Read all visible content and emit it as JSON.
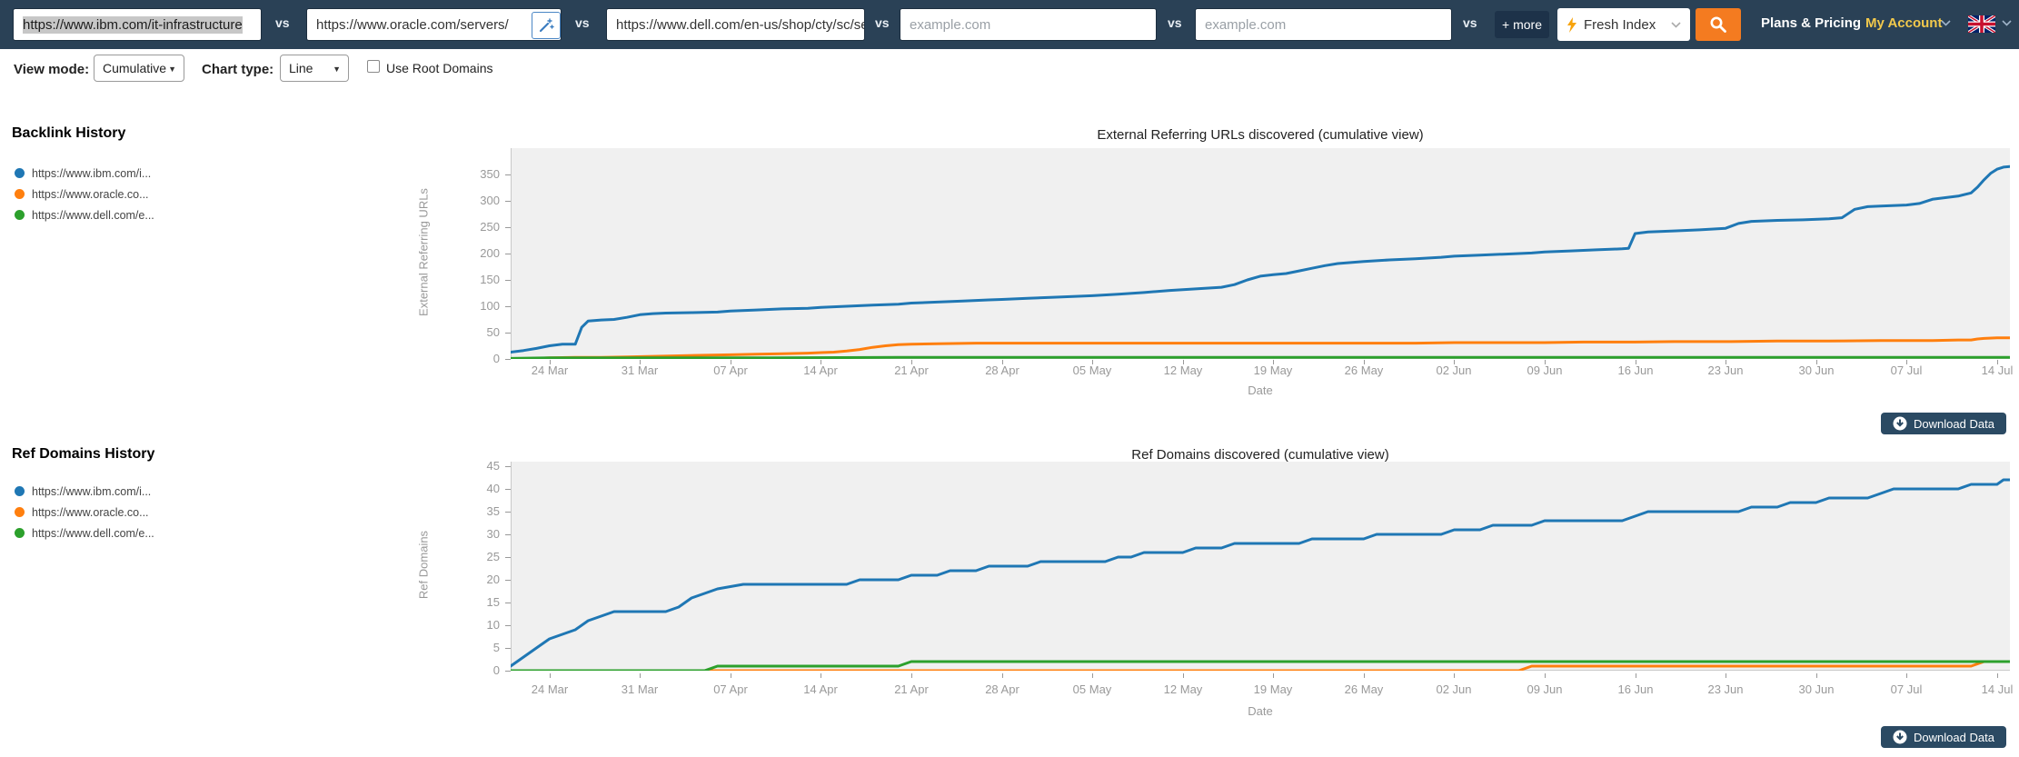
{
  "navbar": {
    "vs": "vs",
    "fields": [
      {
        "value": "https://www.ibm.com/it-infrastructure"
      },
      {
        "value": "https://www.oracle.com/servers/"
      },
      {
        "value": "https://www.dell.com/en-us/shop/cty/sc/se"
      },
      {
        "placeholder": "example.com"
      },
      {
        "placeholder": "example.com"
      }
    ],
    "more": "+ more",
    "index_label": "Fresh Index",
    "plans": "Plans & Pricing",
    "account": "My Account"
  },
  "controls": {
    "view_mode_label": "View mode:",
    "view_mode_value": "Cumulative",
    "chart_type_label": "Chart type:",
    "chart_type_value": "Line",
    "root_domains_label": "Use Root Domains"
  },
  "sections": [
    {
      "heading": "Backlink History",
      "legend": [
        {
          "label": "https://www.ibm.com/i...",
          "color": "#1f77b4"
        },
        {
          "label": "https://www.oracle.co...",
          "color": "#ff7f0e"
        },
        {
          "label": "https://www.dell.com/e...",
          "color": "#2ca02c"
        }
      ]
    },
    {
      "heading": "Ref Domains History",
      "legend": [
        {
          "label": "https://www.ibm.com/i...",
          "color": "#1f77b4"
        },
        {
          "label": "https://www.oracle.co...",
          "color": "#ff7f0e"
        },
        {
          "label": "https://www.dell.com/e...",
          "color": "#2ca02c"
        }
      ]
    }
  ],
  "download_label": "Download Data",
  "colors": {
    "navbar_bg": "#2a4156",
    "accent_orange": "#f47b20",
    "account_gold": "#f2c94c",
    "plot_bg": "#f0f0f0",
    "axis_text": "#999999"
  },
  "chart_data": [
    {
      "type": "line",
      "title": "External Referring URLs discovered (cumulative view)",
      "ylabel": "External Referring URLs",
      "xlabel": "Date",
      "ylim": [
        0,
        400
      ],
      "yticks": [
        0,
        50,
        100,
        150,
        200,
        250,
        300,
        350
      ],
      "x_days": 116,
      "x_range": [
        "21 Mar",
        "15 Jul"
      ],
      "grid": false,
      "legend_position": "left-outside",
      "xticks": [
        {
          "day": 3,
          "label": "24 Mar"
        },
        {
          "day": 10,
          "label": "31 Mar"
        },
        {
          "day": 17,
          "label": "07 Apr"
        },
        {
          "day": 24,
          "label": "14 Apr"
        },
        {
          "day": 31,
          "label": "21 Apr"
        },
        {
          "day": 38,
          "label": "28 Apr"
        },
        {
          "day": 45,
          "label": "05 May"
        },
        {
          "day": 52,
          "label": "12 May"
        },
        {
          "day": 59,
          "label": "19 May"
        },
        {
          "day": 66,
          "label": "26 May"
        },
        {
          "day": 73,
          "label": "02 Jun"
        },
        {
          "day": 80,
          "label": "09 Jun"
        },
        {
          "day": 87,
          "label": "16 Jun"
        },
        {
          "day": 94,
          "label": "23 Jun"
        },
        {
          "day": 101,
          "label": "30 Jun"
        },
        {
          "day": 108,
          "label": "07 Jul"
        },
        {
          "day": 115,
          "label": "14 Jul"
        }
      ],
      "series": [
        {
          "name": "https://www.ibm.com/i...",
          "color": "#1f77b4",
          "points": [
            [
              0,
              13
            ],
            [
              1,
              16
            ],
            [
              2,
              20
            ],
            [
              3,
              25
            ],
            [
              4,
              28
            ],
            [
              5,
              28
            ],
            [
              5.5,
              60
            ],
            [
              6,
              72
            ],
            [
              7,
              74
            ],
            [
              8,
              75
            ],
            [
              9,
              79
            ],
            [
              10,
              84
            ],
            [
              11,
              86
            ],
            [
              12,
              87
            ],
            [
              14,
              88
            ],
            [
              16,
              89
            ],
            [
              17,
              91
            ],
            [
              19,
              93
            ],
            [
              21,
              95
            ],
            [
              23,
              96
            ],
            [
              24,
              98
            ],
            [
              26,
              100
            ],
            [
              28,
              102
            ],
            [
              30,
              104
            ],
            [
              31,
              106
            ],
            [
              33,
              108
            ],
            [
              35,
              110
            ],
            [
              37,
              112
            ],
            [
              38,
              113
            ],
            [
              40,
              115
            ],
            [
              42,
              117
            ],
            [
              45,
              120
            ],
            [
              47,
              123
            ],
            [
              49,
              126
            ],
            [
              51,
              130
            ],
            [
              53,
              133
            ],
            [
              55,
              136
            ],
            [
              56,
              141
            ],
            [
              57,
              150
            ],
            [
              58,
              157
            ],
            [
              59,
              160
            ],
            [
              60,
              162
            ],
            [
              61,
              167
            ],
            [
              62,
              172
            ],
            [
              63,
              177
            ],
            [
              64,
              181
            ],
            [
              66,
              185
            ],
            [
              68,
              188
            ],
            [
              70,
              190
            ],
            [
              72,
              193
            ],
            [
              73,
              195
            ],
            [
              75,
              197
            ],
            [
              77,
              199
            ],
            [
              79,
              201
            ],
            [
              80,
              203
            ],
            [
              82,
              205
            ],
            [
              84,
              207
            ],
            [
              86,
              209
            ],
            [
              86.5,
              210
            ],
            [
              87,
              238
            ],
            [
              88,
              241
            ],
            [
              90,
              243
            ],
            [
              92,
              245
            ],
            [
              94,
              248
            ],
            [
              95,
              257
            ],
            [
              96,
              261
            ],
            [
              98,
              263
            ],
            [
              100,
              264
            ],
            [
              102,
              266
            ],
            [
              103,
              268
            ],
            [
              104,
              284
            ],
            [
              105,
              289
            ],
            [
              106,
              290
            ],
            [
              108,
              292
            ],
            [
              109,
              295
            ],
            [
              110,
              303
            ],
            [
              111,
              306
            ],
            [
              112,
              309
            ],
            [
              113,
              315
            ],
            [
              113.5,
              326
            ],
            [
              114,
              340
            ],
            [
              114.5,
              352
            ],
            [
              115,
              360
            ],
            [
              115.5,
              364
            ],
            [
              116,
              365
            ]
          ]
        },
        {
          "name": "https://www.oracle.co...",
          "color": "#ff7f0e",
          "points": [
            [
              0,
              0
            ],
            [
              2,
              1
            ],
            [
              3,
              2
            ],
            [
              5,
              3
            ],
            [
              7,
              3
            ],
            [
              9,
              4
            ],
            [
              11,
              5
            ],
            [
              13,
              6
            ],
            [
              15,
              7
            ],
            [
              17,
              8
            ],
            [
              19,
              9
            ],
            [
              21,
              10
            ],
            [
              23,
              11
            ],
            [
              24,
              12
            ],
            [
              25,
              13
            ],
            [
              26,
              15
            ],
            [
              27,
              18
            ],
            [
              28,
              22
            ],
            [
              29,
              25
            ],
            [
              30,
              27
            ],
            [
              31,
              28
            ],
            [
              33,
              29
            ],
            [
              36,
              30
            ],
            [
              45,
              30
            ],
            [
              55,
              30
            ],
            [
              65,
              30
            ],
            [
              70,
              30
            ],
            [
              73,
              31
            ],
            [
              80,
              31
            ],
            [
              83,
              32
            ],
            [
              87,
              32
            ],
            [
              90,
              33
            ],
            [
              94,
              33
            ],
            [
              98,
              34
            ],
            [
              102,
              34
            ],
            [
              106,
              35
            ],
            [
              110,
              35
            ],
            [
              112,
              36
            ],
            [
              113,
              36
            ],
            [
              113.5,
              38
            ],
            [
              114,
              39
            ],
            [
              115,
              40
            ],
            [
              116,
              40
            ]
          ]
        },
        {
          "name": "https://www.dell.com/e...",
          "color": "#2ca02c",
          "points": [
            [
              0,
              1
            ],
            [
              3,
              2
            ],
            [
              10,
              2
            ],
            [
              20,
              2
            ],
            [
              30,
              3
            ],
            [
              60,
              3
            ],
            [
              90,
              3
            ],
            [
              116,
              3
            ]
          ]
        }
      ]
    },
    {
      "type": "line",
      "title": "Ref Domains discovered (cumulative view)",
      "ylabel": "Ref Domains",
      "xlabel": "Date",
      "ylim": [
        0,
        46
      ],
      "yticks": [
        0,
        5,
        10,
        15,
        20,
        25,
        30,
        35,
        40,
        45
      ],
      "x_days": 116,
      "x_range": [
        "21 Mar",
        "15 Jul"
      ],
      "grid": false,
      "legend_position": "left-outside",
      "xticks": [
        {
          "day": 3,
          "label": "24 Mar"
        },
        {
          "day": 10,
          "label": "31 Mar"
        },
        {
          "day": 17,
          "label": "07 Apr"
        },
        {
          "day": 24,
          "label": "14 Apr"
        },
        {
          "day": 31,
          "label": "21 Apr"
        },
        {
          "day": 38,
          "label": "28 Apr"
        },
        {
          "day": 45,
          "label": "05 May"
        },
        {
          "day": 52,
          "label": "12 May"
        },
        {
          "day": 59,
          "label": "19 May"
        },
        {
          "day": 66,
          "label": "26 May"
        },
        {
          "day": 73,
          "label": "02 Jun"
        },
        {
          "day": 80,
          "label": "09 Jun"
        },
        {
          "day": 87,
          "label": "16 Jun"
        },
        {
          "day": 94,
          "label": "23 Jun"
        },
        {
          "day": 101,
          "label": "30 Jun"
        },
        {
          "day": 108,
          "label": "07 Jul"
        },
        {
          "day": 115,
          "label": "14 Jul"
        }
      ],
      "series": [
        {
          "name": "https://www.ibm.com/i...",
          "color": "#1f77b4",
          "points": [
            [
              0,
              1
            ],
            [
              1,
              3
            ],
            [
              2,
              5
            ],
            [
              3,
              7
            ],
            [
              4,
              8
            ],
            [
              5,
              9
            ],
            [
              6,
              11
            ],
            [
              7,
              12
            ],
            [
              8,
              13
            ],
            [
              12,
              13
            ],
            [
              13,
              14
            ],
            [
              14,
              16
            ],
            [
              15,
              17
            ],
            [
              16,
              18
            ],
            [
              18,
              19
            ],
            [
              24,
              19
            ],
            [
              26,
              19
            ],
            [
              27,
              20
            ],
            [
              30,
              20
            ],
            [
              31,
              21
            ],
            [
              33,
              21
            ],
            [
              34,
              22
            ],
            [
              36,
              22
            ],
            [
              37,
              23
            ],
            [
              40,
              23
            ],
            [
              41,
              24
            ],
            [
              46,
              24
            ],
            [
              47,
              25
            ],
            [
              48,
              25
            ],
            [
              49,
              26
            ],
            [
              52,
              26
            ],
            [
              53,
              27
            ],
            [
              55,
              27
            ],
            [
              56,
              28
            ],
            [
              61,
              28
            ],
            [
              62,
              29
            ],
            [
              66,
              29
            ],
            [
              67,
              30
            ],
            [
              72,
              30
            ],
            [
              73,
              31
            ],
            [
              75,
              31
            ],
            [
              76,
              32
            ],
            [
              79,
              32
            ],
            [
              80,
              33
            ],
            [
              86,
              33
            ],
            [
              87,
              34
            ],
            [
              88,
              35
            ],
            [
              91,
              35
            ],
            [
              95,
              35
            ],
            [
              96,
              36
            ],
            [
              98,
              36
            ],
            [
              99,
              37
            ],
            [
              101,
              37
            ],
            [
              102,
              38
            ],
            [
              105,
              38
            ],
            [
              106,
              39
            ],
            [
              107,
              40
            ],
            [
              112,
              40
            ],
            [
              113,
              41
            ],
            [
              115,
              41
            ],
            [
              115.5,
              42
            ],
            [
              116,
              42
            ]
          ]
        },
        {
          "name": "https://www.oracle.co...",
          "color": "#ff7f0e",
          "points": [
            [
              0,
              0
            ],
            [
              78,
              0
            ],
            [
              79,
              1
            ],
            [
              113,
              1
            ],
            [
              114,
              2
            ],
            [
              116,
              2
            ]
          ]
        },
        {
          "name": "https://www.dell.com/e...",
          "color": "#2ca02c",
          "points": [
            [
              0,
              0
            ],
            [
              15,
              0
            ],
            [
              16,
              1
            ],
            [
              30,
              1
            ],
            [
              31,
              2
            ],
            [
              116,
              2
            ]
          ]
        }
      ]
    }
  ]
}
